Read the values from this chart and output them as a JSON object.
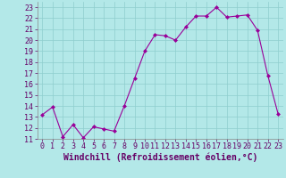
{
  "x": [
    0,
    1,
    2,
    3,
    4,
    5,
    6,
    7,
    8,
    9,
    10,
    11,
    12,
    13,
    14,
    15,
    16,
    17,
    18,
    19,
    20,
    21,
    22,
    23
  ],
  "y": [
    13.2,
    13.9,
    11.2,
    12.3,
    11.1,
    12.1,
    11.9,
    11.7,
    14.0,
    16.5,
    19.0,
    20.5,
    20.4,
    20.0,
    21.2,
    22.2,
    22.2,
    23.0,
    22.1,
    22.2,
    22.3,
    20.9,
    16.8,
    13.3
  ],
  "line_color": "#990099",
  "marker": "D",
  "marker_size": 2.0,
  "bg_color": "#b3e8e8",
  "grid_color": "#8ecece",
  "xlabel": "Windchill (Refroidissement éolien,°C)",
  "ylim": [
    11,
    23.5
  ],
  "xlim": [
    -0.5,
    23.5
  ],
  "yticks": [
    11,
    12,
    13,
    14,
    15,
    16,
    17,
    18,
    19,
    20,
    21,
    22,
    23
  ],
  "xticks": [
    0,
    1,
    2,
    3,
    4,
    5,
    6,
    7,
    8,
    9,
    10,
    11,
    12,
    13,
    14,
    15,
    16,
    17,
    18,
    19,
    20,
    21,
    22,
    23
  ],
  "xlabel_fontsize": 7.0,
  "tick_fontsize": 6.0,
  "lw": 0.8
}
